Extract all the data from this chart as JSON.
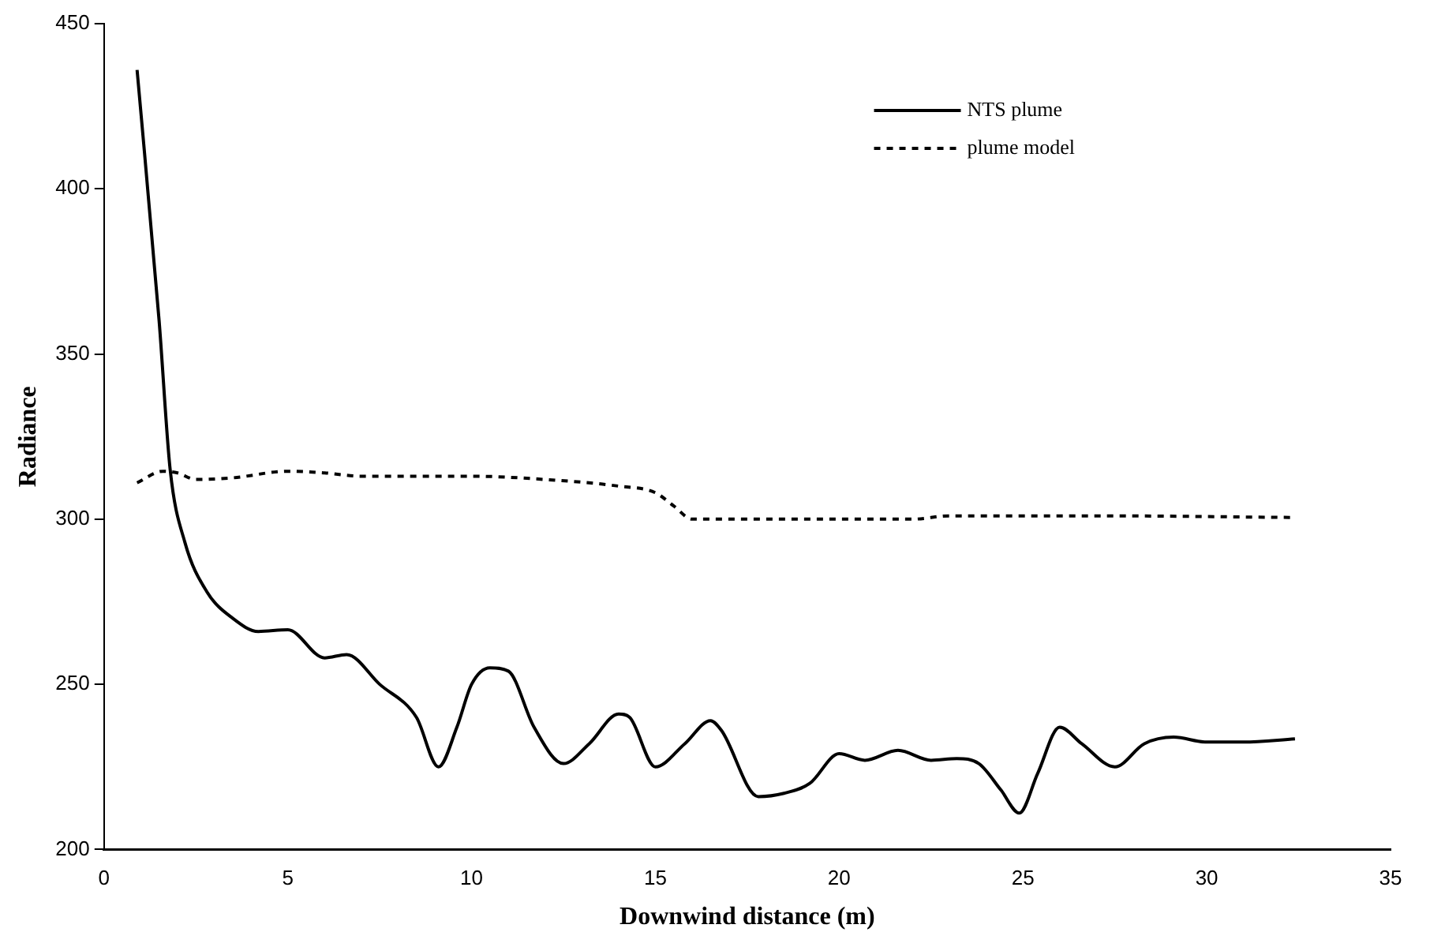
{
  "chart_data": {
    "type": "line",
    "xlabel": "Downwind distance (m)",
    "ylabel": "Radiance",
    "xlim": [
      0,
      35
    ],
    "xticks": [
      0,
      5,
      10,
      15,
      20,
      25,
      30,
      35
    ],
    "ylim": [
      200,
      450
    ],
    "yticks": [
      200,
      250,
      300,
      350,
      400,
      450
    ],
    "grid": false,
    "legend": "top right",
    "marker": "none",
    "series": [
      {
        "name": "NTS plume",
        "color": "#000000",
        "line_style": "solid",
        "x": [
          0.9,
          1.5,
          1.8,
          2.2,
          2.8,
          3.5,
          4.2,
          5,
          6,
          6.6,
          7.5,
          8.5,
          9.1,
          9.6,
          10,
          10.5,
          11,
          11.7,
          12.5,
          13.2,
          14,
          14.3,
          15,
          15.8,
          16.5,
          16.8,
          17.8,
          18.5,
          19.2,
          20,
          20.7,
          21.6,
          22.5,
          23.2,
          23.8,
          24.4,
          24.9,
          25.4,
          26,
          26.6,
          27.5,
          28.3,
          29.1,
          30,
          31,
          32.4
        ],
        "values": [
          436,
          360,
          315,
          293,
          278,
          270,
          266,
          266.5,
          258,
          259,
          250,
          240,
          225,
          237,
          250,
          255,
          254,
          237,
          226,
          232,
          241,
          240,
          225,
          232,
          239,
          236,
          216,
          217,
          220,
          229,
          227,
          230,
          227,
          227.5,
          226,
          218,
          211,
          223,
          237,
          232,
          225,
          232,
          234,
          232.5,
          232.5,
          233.5
        ]
      },
      {
        "name": "plume model",
        "color": "#000000",
        "line_style": "dashed",
        "x": [
          0.9,
          1.6,
          2,
          2.5,
          3.5,
          5,
          6,
          7,
          10,
          12,
          14,
          15,
          15.5,
          16,
          20,
          22,
          23,
          27,
          32.4
        ],
        "values": [
          311,
          314.5,
          314,
          312,
          312.5,
          314.5,
          314,
          313,
          313,
          312,
          310,
          308,
          304,
          300,
          300,
          300,
          301,
          301,
          300.5
        ]
      }
    ]
  }
}
